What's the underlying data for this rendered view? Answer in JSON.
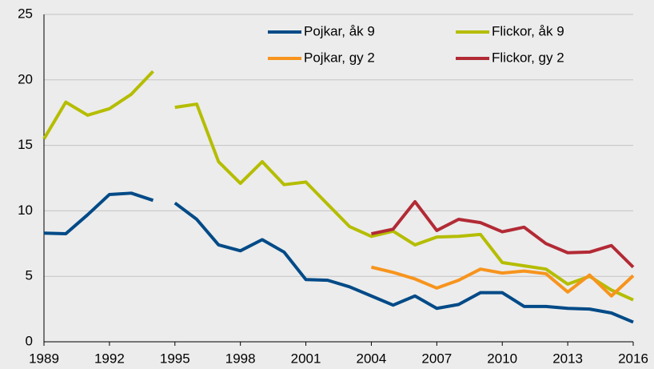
{
  "chart_data": {
    "type": "line",
    "x": [
      1989,
      1990,
      1991,
      1992,
      1993,
      1994,
      null,
      1995,
      1996,
      1997,
      1998,
      1999,
      2000,
      2001,
      2002,
      2003,
      2004,
      2005,
      2006,
      2007,
      2008,
      2009,
      2010,
      2011,
      2012,
      2013,
      2014,
      2015,
      2016
    ],
    "series": [
      {
        "name": "Pojkar, åk 9",
        "color": "#004a87",
        "values": [
          8.3,
          8.25,
          9.7,
          11.25,
          11.35,
          10.8,
          null,
          10.6,
          9.35,
          7.4,
          6.95,
          7.8,
          6.85,
          4.75,
          4.7,
          4.2,
          3.5,
          2.8,
          3.5,
          2.55,
          2.85,
          3.75,
          3.75,
          2.7,
          2.7,
          2.55,
          2.5,
          2.2,
          1.5
        ]
      },
      {
        "name": "Flickor, åk 9",
        "color": "#b5bd00",
        "values": [
          15.5,
          18.3,
          17.3,
          17.8,
          18.9,
          20.65,
          null,
          17.9,
          18.15,
          13.75,
          12.1,
          13.75,
          12.0,
          12.2,
          10.5,
          8.8,
          8.05,
          8.45,
          7.4,
          8.0,
          8.05,
          8.2,
          6.05,
          5.8,
          5.55,
          4.4,
          5.0,
          3.95,
          3.2
        ]
      },
      {
        "name": "Pojkar, gy 2",
        "color": "#f7941d",
        "values": [
          null,
          null,
          null,
          null,
          null,
          null,
          null,
          null,
          null,
          null,
          null,
          null,
          null,
          null,
          null,
          null,
          5.7,
          5.3,
          4.8,
          4.1,
          4.7,
          5.55,
          5.25,
          5.4,
          5.2,
          3.8,
          5.1,
          3.5,
          5.05
        ]
      },
      {
        "name": "Flickor, gy 2",
        "color": "#b22a35",
        "values": [
          null,
          null,
          null,
          null,
          null,
          null,
          null,
          null,
          null,
          null,
          null,
          null,
          null,
          null,
          null,
          null,
          8.25,
          8.6,
          10.7,
          8.5,
          9.35,
          9.1,
          8.4,
          8.75,
          7.5,
          6.8,
          6.85,
          7.35,
          5.7
        ]
      }
    ],
    "xlim": [
      1989,
      2016
    ],
    "xticks": [
      1989,
      1992,
      1995,
      1998,
      2001,
      2004,
      2007,
      2010,
      2013,
      2016
    ],
    "ylim": [
      0,
      25
    ],
    "yticks": [
      0,
      5,
      10,
      15,
      20,
      25
    ],
    "grid": true,
    "legend": "top-right"
  }
}
